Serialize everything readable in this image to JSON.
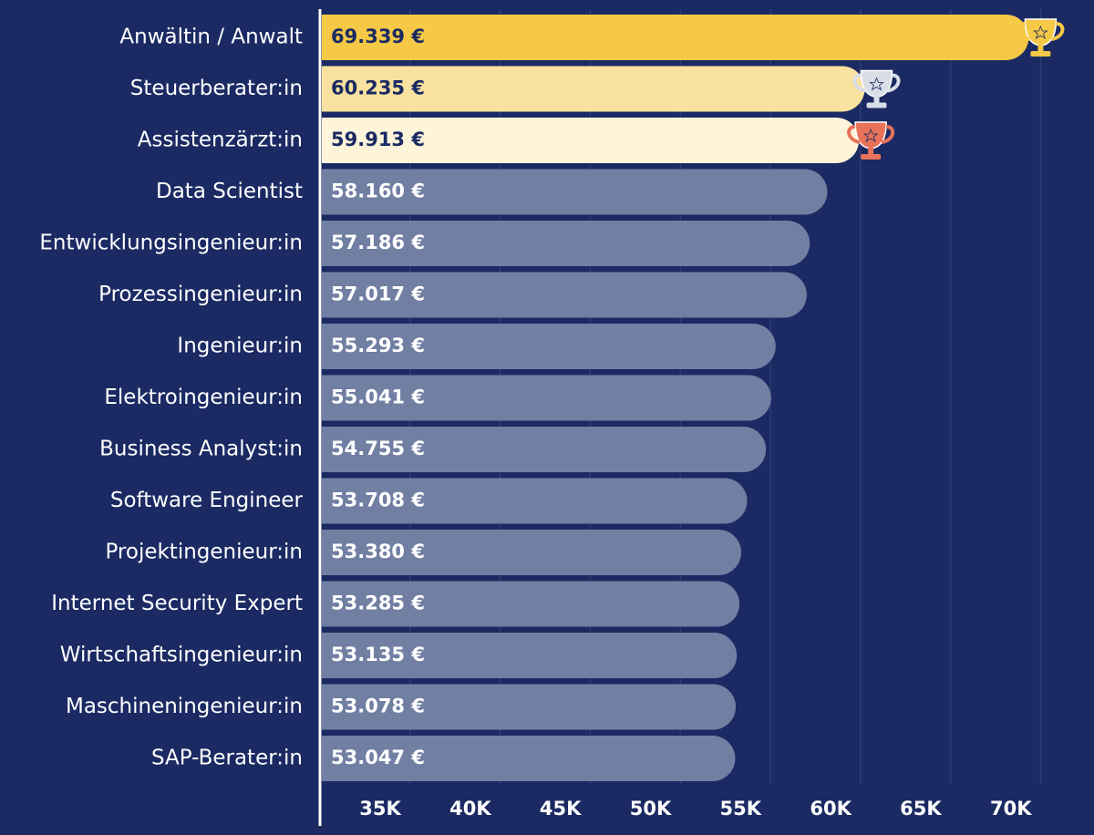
{
  "chart_data": {
    "type": "bar",
    "orientation": "horizontal",
    "categories": [
      "Anwältin / Anwalt",
      "Steuerberater:in",
      "Assistenzärzt:in",
      "Data Scientist",
      "Entwicklungsingenieur:in",
      "Prozessingenieur:in",
      "Ingenieur:in",
      "Elektroingenieur:in",
      "Business Analyst:in",
      "Software Engineer",
      "Projektingenieur:in",
      "Internet Security Expert",
      "Wirtschaftsingenieur:in",
      "Maschineningenieur:in",
      "SAP-Berater:in"
    ],
    "values": [
      69339,
      60235,
      59913,
      58160,
      57186,
      57017,
      55293,
      55041,
      54755,
      53708,
      53380,
      53285,
      53135,
      53078,
      53047
    ],
    "value_labels": [
      "69.339 €",
      "60.235 €",
      "59.913 €",
      "58.160 €",
      "57.186 €",
      "57.017 €",
      "55.293 €",
      "55.041 €",
      "54.755 €",
      "53.708 €",
      "53.380 €",
      "53.285 €",
      "53.135 €",
      "53.078 €",
      "53.047 €"
    ],
    "colors": [
      "#f5c945",
      "#f9e29f",
      "#fdf4da",
      "#717fa3",
      "#717fa3",
      "#717fa3",
      "#717fa3",
      "#717fa3",
      "#717fa3",
      "#717fa3",
      "#717fa3",
      "#717fa3",
      "#717fa3",
      "#717fa3",
      "#717fa3"
    ],
    "xlim": [
      30000,
      72000
    ],
    "xticks": [
      {
        "value": 35000,
        "label": "35K"
      },
      {
        "value": 40000,
        "label": "40K"
      },
      {
        "value": 45000,
        "label": "45K"
      },
      {
        "value": 50000,
        "label": "50K"
      },
      {
        "value": 55000,
        "label": "55K"
      },
      {
        "value": 60000,
        "label": "60K"
      },
      {
        "value": 65000,
        "label": "65K"
      },
      {
        "value": 70000,
        "label": "70K"
      }
    ],
    "grid": true
  }
}
